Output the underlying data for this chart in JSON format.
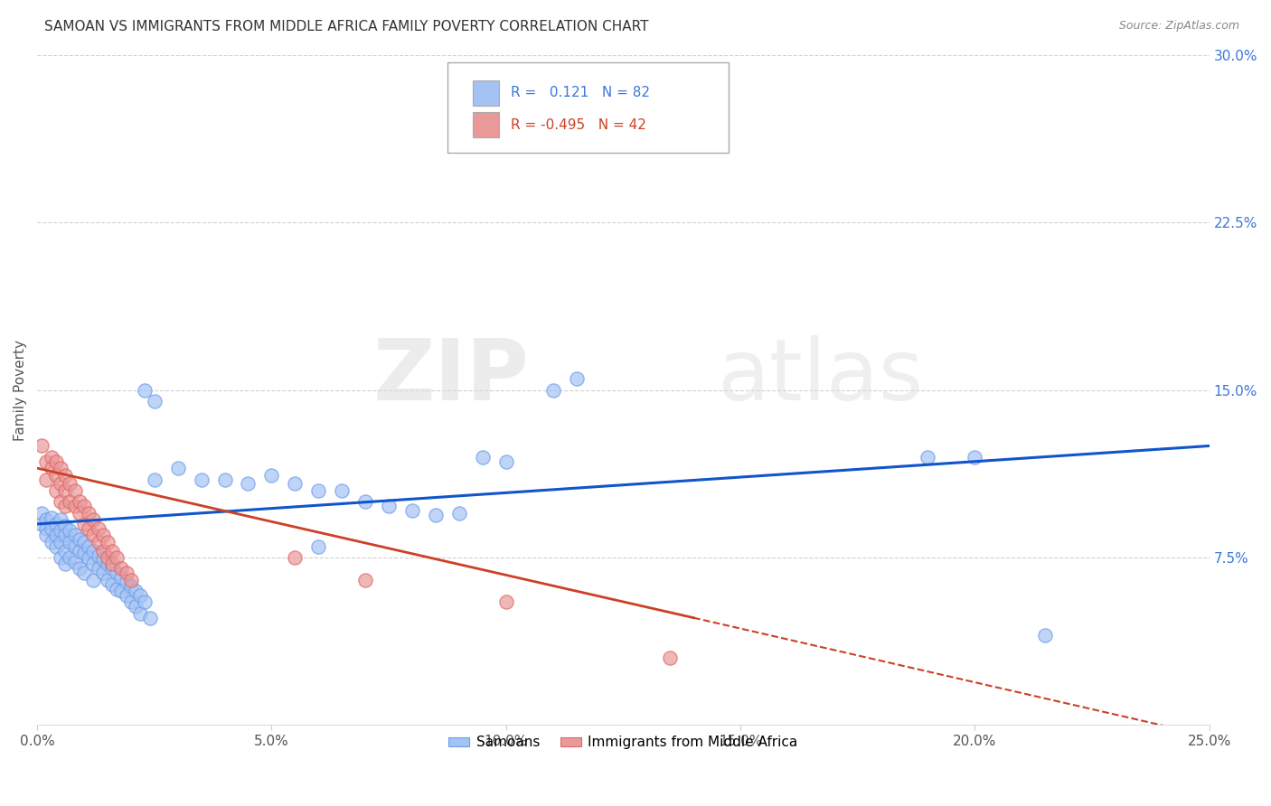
{
  "title": "SAMOAN VS IMMIGRANTS FROM MIDDLE AFRICA FAMILY POVERTY CORRELATION CHART",
  "source": "Source: ZipAtlas.com",
  "ylabel": "Family Poverty",
  "x_tick_labels": [
    "0.0%",
    "5.0%",
    "10.0%",
    "15.0%",
    "20.0%",
    "25.0%"
  ],
  "x_tick_vals": [
    0.0,
    0.05,
    0.1,
    0.15,
    0.2,
    0.25
  ],
  "y_tick_labels": [
    "7.5%",
    "15.0%",
    "22.5%",
    "30.0%"
  ],
  "y_tick_vals": [
    0.075,
    0.15,
    0.225,
    0.3
  ],
  "xlim": [
    0.0,
    0.25
  ],
  "ylim": [
    0.0,
    0.3
  ],
  "legend_label_blue": "Samoans",
  "legend_label_pink": "Immigrants from Middle Africa",
  "r_blue": 0.121,
  "n_blue": 82,
  "r_pink": -0.495,
  "n_pink": 42,
  "blue_color": "#a4c2f4",
  "pink_color": "#ea9999",
  "blue_edge_color": "#6d9eeb",
  "pink_edge_color": "#e06666",
  "blue_line_color": "#1155cc",
  "pink_line_color": "#cc4125",
  "watermark_zip": "ZIP",
  "watermark_atlas": "atlas",
  "blue_scatter": [
    [
      0.001,
      0.095
    ],
    [
      0.001,
      0.09
    ],
    [
      0.002,
      0.092
    ],
    [
      0.002,
      0.088
    ],
    [
      0.002,
      0.085
    ],
    [
      0.003,
      0.093
    ],
    [
      0.003,
      0.088
    ],
    [
      0.003,
      0.082
    ],
    [
      0.004,
      0.09
    ],
    [
      0.004,
      0.085
    ],
    [
      0.004,
      0.08
    ],
    [
      0.005,
      0.092
    ],
    [
      0.005,
      0.087
    ],
    [
      0.005,
      0.082
    ],
    [
      0.005,
      0.075
    ],
    [
      0.006,
      0.089
    ],
    [
      0.006,
      0.085
    ],
    [
      0.006,
      0.078
    ],
    [
      0.006,
      0.072
    ],
    [
      0.007,
      0.087
    ],
    [
      0.007,
      0.082
    ],
    [
      0.007,
      0.075
    ],
    [
      0.008,
      0.085
    ],
    [
      0.008,
      0.08
    ],
    [
      0.008,
      0.073
    ],
    [
      0.009,
      0.083
    ],
    [
      0.009,
      0.078
    ],
    [
      0.009,
      0.07
    ],
    [
      0.01,
      0.082
    ],
    [
      0.01,
      0.077
    ],
    [
      0.01,
      0.068
    ],
    [
      0.011,
      0.08
    ],
    [
      0.011,
      0.075
    ],
    [
      0.012,
      0.078
    ],
    [
      0.012,
      0.072
    ],
    [
      0.012,
      0.065
    ],
    [
      0.013,
      0.076
    ],
    [
      0.013,
      0.07
    ],
    [
      0.014,
      0.074
    ],
    [
      0.014,
      0.068
    ],
    [
      0.015,
      0.072
    ],
    [
      0.015,
      0.065
    ],
    [
      0.016,
      0.07
    ],
    [
      0.016,
      0.063
    ],
    [
      0.017,
      0.068
    ],
    [
      0.017,
      0.061
    ],
    [
      0.018,
      0.066
    ],
    [
      0.018,
      0.06
    ],
    [
      0.019,
      0.064
    ],
    [
      0.019,
      0.058
    ],
    [
      0.02,
      0.062
    ],
    [
      0.02,
      0.055
    ],
    [
      0.021,
      0.06
    ],
    [
      0.021,
      0.053
    ],
    [
      0.022,
      0.058
    ],
    [
      0.022,
      0.05
    ],
    [
      0.023,
      0.15
    ],
    [
      0.023,
      0.055
    ],
    [
      0.024,
      0.048
    ],
    [
      0.025,
      0.145
    ],
    [
      0.025,
      0.11
    ],
    [
      0.03,
      0.115
    ],
    [
      0.035,
      0.11
    ],
    [
      0.04,
      0.11
    ],
    [
      0.045,
      0.108
    ],
    [
      0.05,
      0.112
    ],
    [
      0.055,
      0.108
    ],
    [
      0.06,
      0.105
    ],
    [
      0.06,
      0.08
    ],
    [
      0.065,
      0.105
    ],
    [
      0.07,
      0.1
    ],
    [
      0.075,
      0.098
    ],
    [
      0.08,
      0.096
    ],
    [
      0.085,
      0.094
    ],
    [
      0.09,
      0.095
    ],
    [
      0.095,
      0.12
    ],
    [
      0.1,
      0.118
    ],
    [
      0.11,
      0.15
    ],
    [
      0.115,
      0.155
    ],
    [
      0.19,
      0.12
    ],
    [
      0.2,
      0.12
    ],
    [
      0.215,
      0.04
    ]
  ],
  "pink_scatter": [
    [
      0.001,
      0.125
    ],
    [
      0.002,
      0.118
    ],
    [
      0.002,
      0.11
    ],
    [
      0.003,
      0.12
    ],
    [
      0.003,
      0.115
    ],
    [
      0.004,
      0.118
    ],
    [
      0.004,
      0.112
    ],
    [
      0.004,
      0.105
    ],
    [
      0.005,
      0.115
    ],
    [
      0.005,
      0.108
    ],
    [
      0.005,
      0.1
    ],
    [
      0.006,
      0.112
    ],
    [
      0.006,
      0.105
    ],
    [
      0.006,
      0.098
    ],
    [
      0.007,
      0.108
    ],
    [
      0.007,
      0.1
    ],
    [
      0.008,
      0.105
    ],
    [
      0.008,
      0.098
    ],
    [
      0.009,
      0.1
    ],
    [
      0.009,
      0.095
    ],
    [
      0.01,
      0.098
    ],
    [
      0.01,
      0.09
    ],
    [
      0.011,
      0.095
    ],
    [
      0.011,
      0.088
    ],
    [
      0.012,
      0.092
    ],
    [
      0.012,
      0.085
    ],
    [
      0.013,
      0.088
    ],
    [
      0.013,
      0.082
    ],
    [
      0.014,
      0.085
    ],
    [
      0.014,
      0.078
    ],
    [
      0.015,
      0.082
    ],
    [
      0.015,
      0.075
    ],
    [
      0.016,
      0.078
    ],
    [
      0.016,
      0.072
    ],
    [
      0.017,
      0.075
    ],
    [
      0.018,
      0.07
    ],
    [
      0.019,
      0.068
    ],
    [
      0.02,
      0.065
    ],
    [
      0.055,
      0.075
    ],
    [
      0.07,
      0.065
    ],
    [
      0.1,
      0.055
    ],
    [
      0.135,
      0.03
    ]
  ]
}
